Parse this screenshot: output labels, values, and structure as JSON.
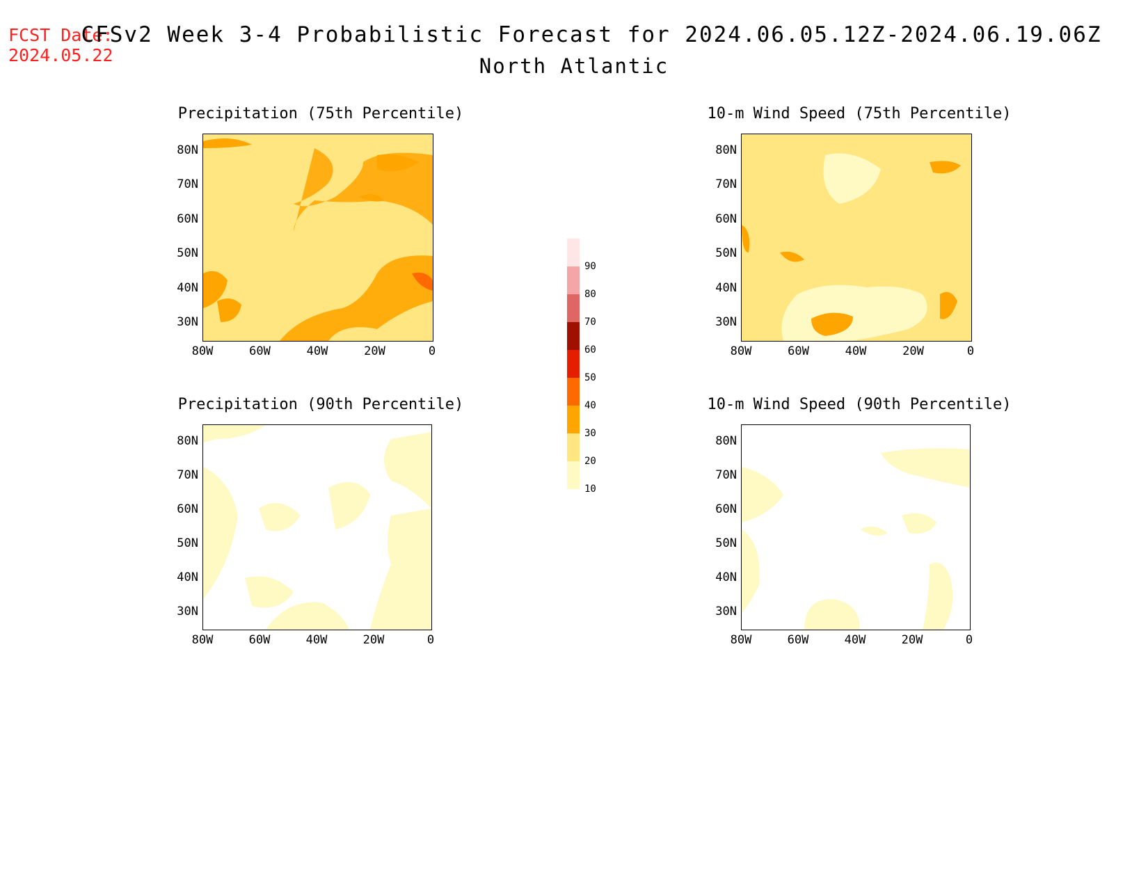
{
  "header": {
    "fcst_label": "FCST Date:",
    "fcst_date": "2024.05.22",
    "title": "CFSv2 Week 3-4 Probabilistic Forecast for 2024.06.05.12Z-2024.06.19.06Z",
    "region": "North Atlantic"
  },
  "panels": [
    {
      "title": "Precipitation (75th Percentile)"
    },
    {
      "title": "10-m Wind Speed (75th Percentile)"
    },
    {
      "title": "Precipitation (90th Percentile)"
    },
    {
      "title": "10-m Wind Speed (90th Percentile)"
    }
  ],
  "axes": {
    "lat_labels": [
      "80N",
      "70N",
      "60N",
      "50N",
      "40N",
      "30N"
    ],
    "lon_labels": [
      "80W",
      "60W",
      "40W",
      "20W",
      "0"
    ],
    "lat_range": [
      25,
      85
    ],
    "lon_range": [
      -80,
      0
    ]
  },
  "colorbar": {
    "levels": [
      "10",
      "20",
      "30",
      "40",
      "50",
      "60",
      "70",
      "80",
      "90"
    ],
    "colors": [
      "#fff9c4",
      "#ffe680",
      "#ffa500",
      "#ff6a00",
      "#e61e00",
      "#a01000",
      "#e06666",
      "#f4a6a6",
      "#ffe6e6"
    ]
  }
}
